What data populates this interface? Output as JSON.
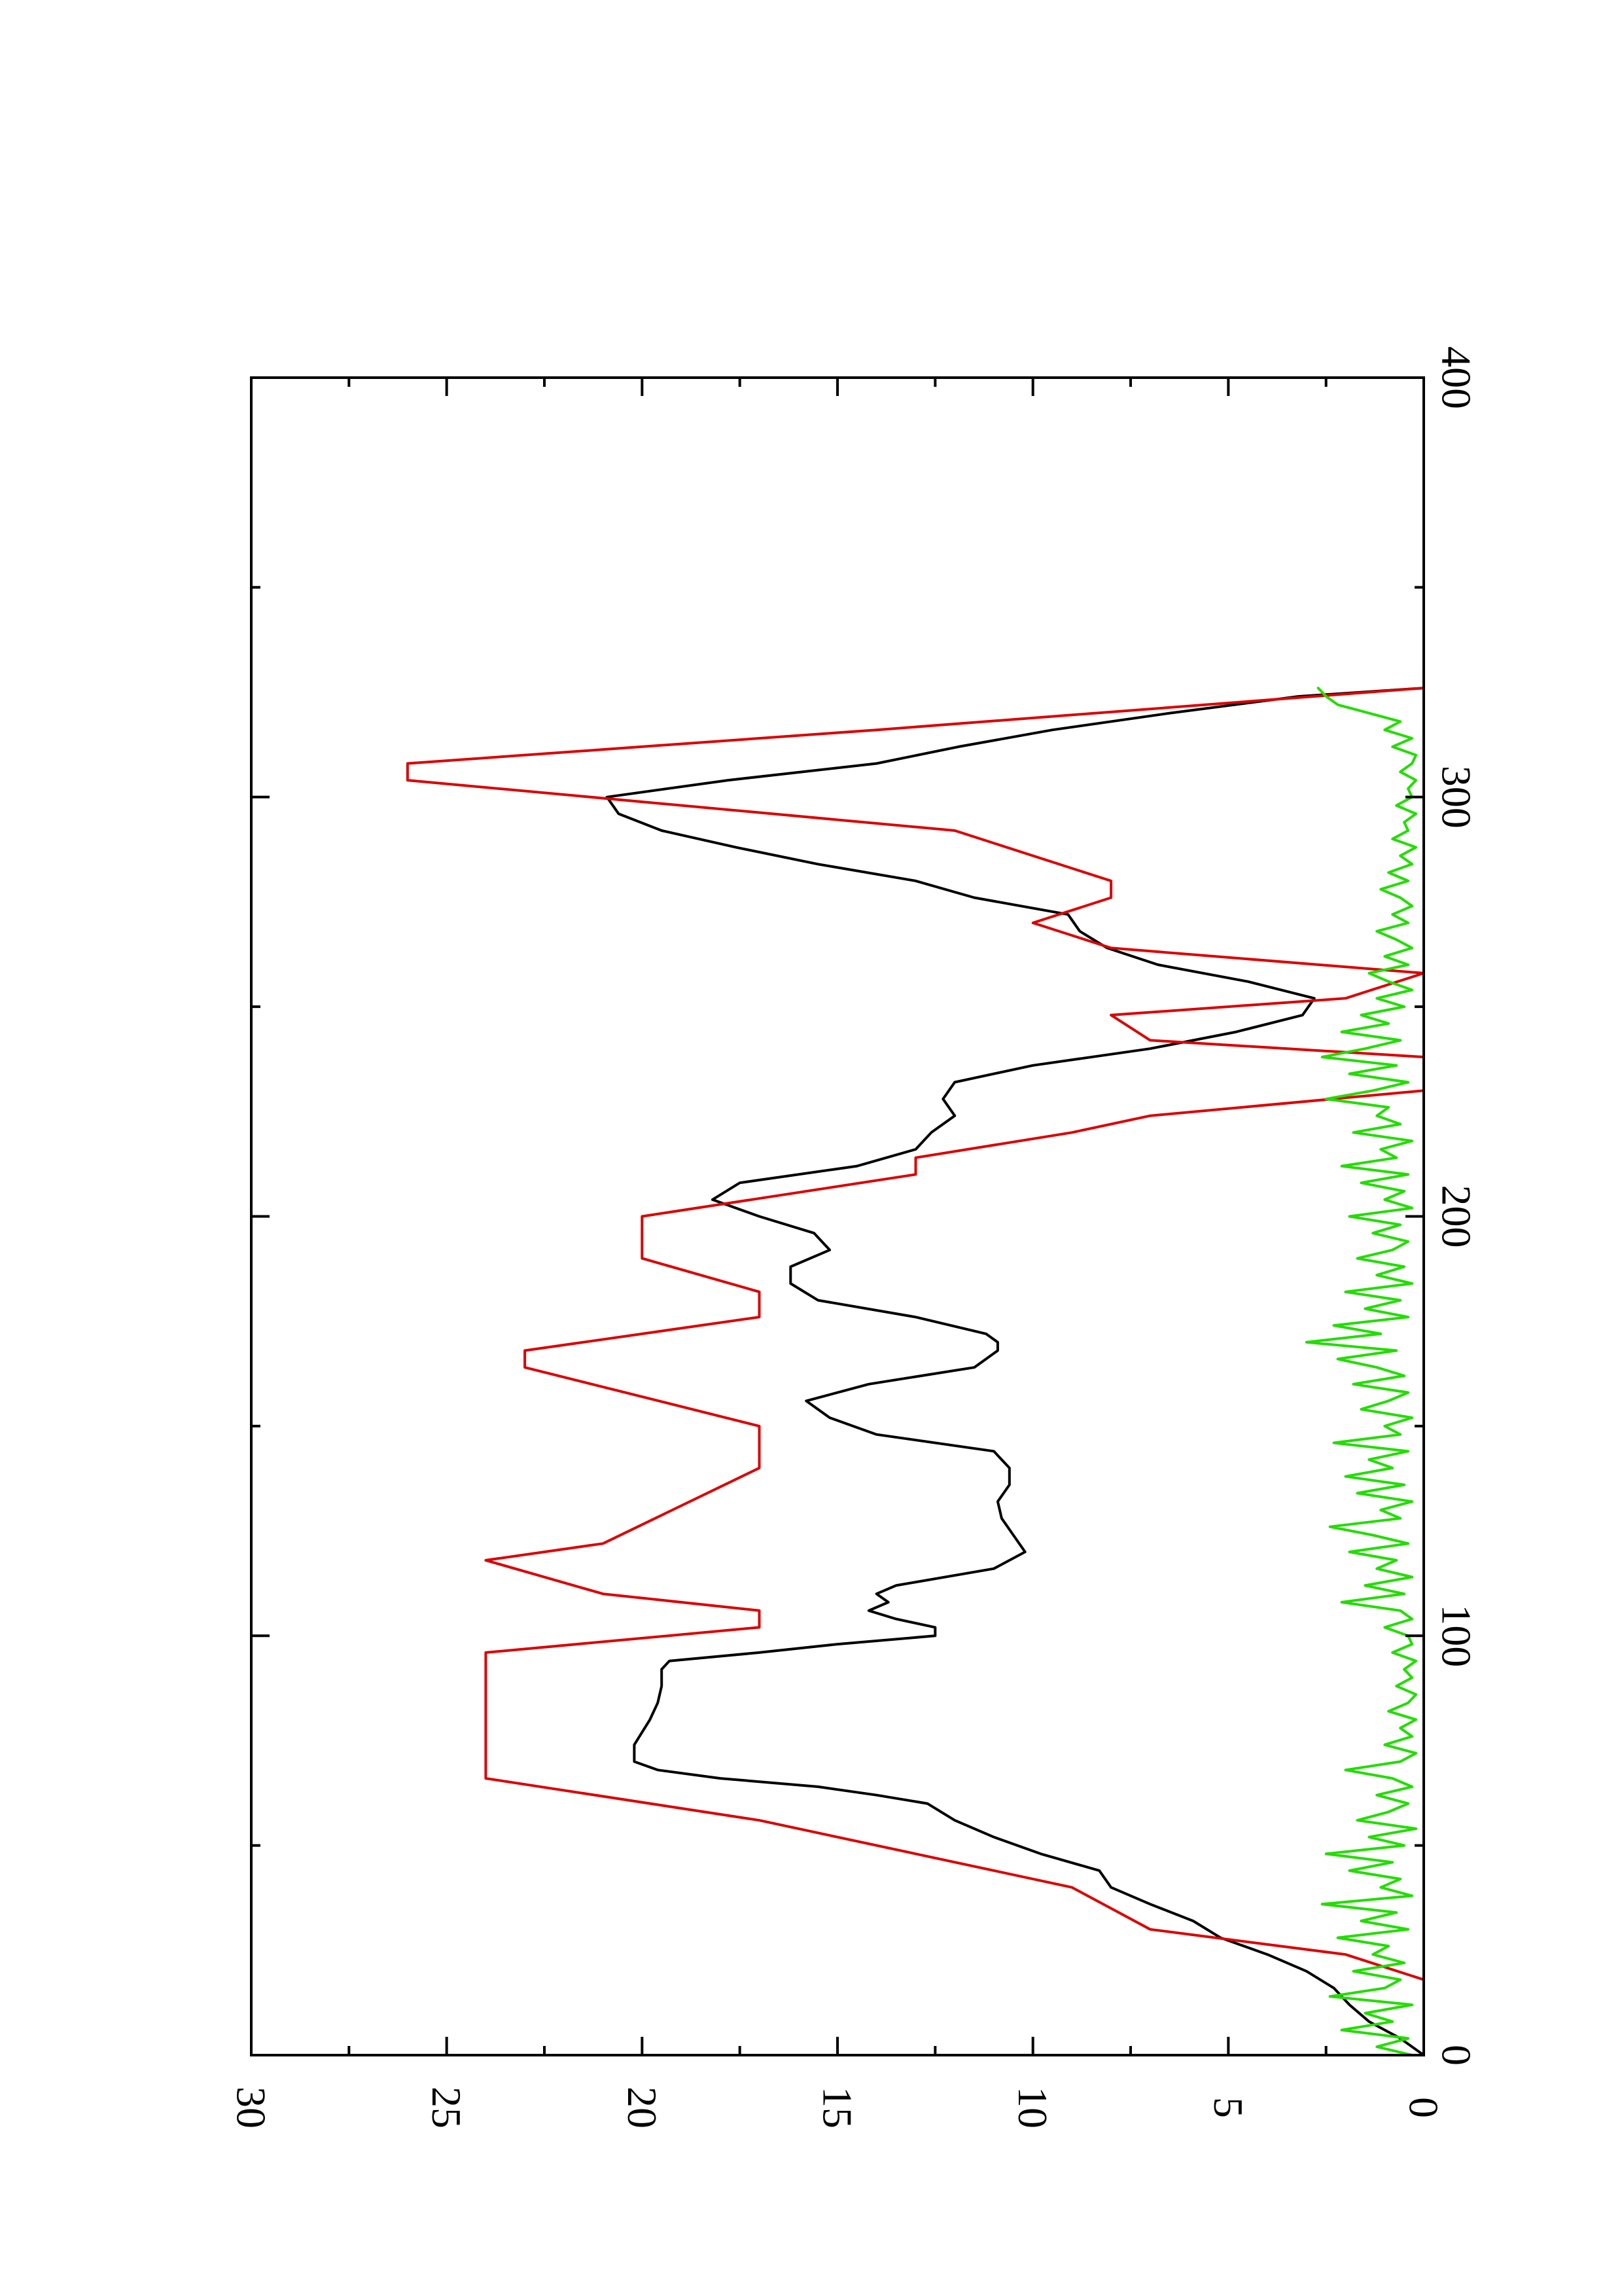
{
  "chart_data": {
    "type": "line",
    "orientation": "rotated-90-clockwise",
    "title": "",
    "xlabel": "",
    "ylabel": "",
    "xlim": [
      0,
      400
    ],
    "ylim": [
      0,
      30
    ],
    "x_ticks": [
      "0",
      "100",
      "200",
      "300",
      "400"
    ],
    "x_minor_ticks": [
      50,
      150,
      250,
      350
    ],
    "y_ticks": [
      "0",
      "5",
      "10",
      "15",
      "20",
      "25",
      "30"
    ],
    "y_minor_ticks": [
      2.5,
      7.5,
      12.5,
      17.5,
      22.5,
      27.5
    ],
    "grid": false,
    "legend": "none",
    "series": [
      {
        "color": "#000000",
        "style": "smooth-line",
        "x": [
          0,
          4,
          8,
          12,
          16,
          20,
          24,
          28,
          32,
          36,
          40,
          44,
          48,
          52,
          56,
          60,
          62,
          64,
          66,
          68,
          70,
          72,
          74,
          80,
          84,
          88,
          92,
          94,
          96,
          98,
          100,
          102,
          104,
          106,
          108,
          110,
          112,
          116,
          120,
          124,
          128,
          132,
          136,
          140,
          144,
          148,
          152,
          156,
          160,
          164,
          168,
          170,
          172,
          176,
          180,
          184,
          188,
          192,
          196,
          200,
          204,
          208,
          212,
          216,
          220,
          224,
          228,
          232,
          236,
          240,
          244,
          248,
          252,
          256,
          260,
          264,
          268,
          272,
          276,
          280,
          284,
          288,
          292,
          296,
          300,
          304,
          308,
          312,
          316,
          320,
          324,
          326
        ],
        "values": [
          0,
          0.6,
          1.4,
          1.9,
          2.3,
          3.0,
          4.0,
          5.2,
          5.9,
          7.0,
          8.0,
          8.3,
          9.8,
          11.0,
          12.0,
          12.7,
          14.0,
          15.5,
          18.0,
          19.6,
          20.2,
          20.2,
          20.2,
          19.8,
          19.6,
          19.5,
          19.5,
          19.3,
          17.0,
          15.0,
          12.5,
          12.5,
          13.5,
          14.2,
          13.7,
          14.0,
          13.5,
          11.0,
          10.2,
          10.5,
          10.8,
          10.9,
          10.6,
          10.6,
          11.0,
          14.0,
          15.2,
          15.8,
          14.2,
          11.5,
          10.9,
          10.9,
          11.2,
          13.0,
          15.5,
          16.2,
          16.2,
          15.2,
          15.6,
          17.0,
          18.2,
          17.5,
          14.5,
          13.0,
          12.6,
          12.0,
          12.3,
          12.0,
          10.0,
          7.0,
          4.8,
          3.1,
          2.8,
          4.5,
          6.8,
          8.1,
          8.8,
          9.1,
          11.5,
          13.0,
          15.5,
          17.6,
          19.5,
          20.6,
          20.9,
          17.8,
          14.0,
          11.9,
          9.5,
          6.5,
          3.2,
          0
        ]
      },
      {
        "color": "#dd0000",
        "style": "polyline",
        "x": [
          0,
          18,
          24,
          30,
          40,
          48,
          56,
          66,
          84,
          96,
          102,
          106,
          110,
          118,
          122,
          140,
          150,
          164,
          168,
          176,
          182,
          190,
          200,
          210,
          214,
          220,
          224,
          230,
          238,
          242,
          248,
          252,
          258,
          264,
          270,
          276,
          280,
          292,
          304,
          308,
          316,
          326
        ],
        "values": [
          0,
          0,
          2,
          7,
          9,
          13,
          17,
          24,
          24,
          24,
          17,
          17,
          21,
          24,
          21,
          17,
          17,
          23,
          23,
          17,
          17,
          20,
          20,
          13,
          13,
          9,
          7,
          0,
          0,
          7,
          8,
          2,
          0,
          8,
          10,
          8,
          8,
          12,
          26,
          26,
          14,
          0
        ]
      },
      {
        "color": "#22dd00",
        "style": "noisy-line",
        "x": [
          0,
          2,
          4,
          6,
          8,
          10,
          12,
          14,
          16,
          18,
          20,
          22,
          24,
          26,
          28,
          30,
          32,
          34,
          36,
          38,
          40,
          42,
          44,
          46,
          48,
          50,
          52,
          54,
          56,
          58,
          60,
          62,
          64,
          66,
          68,
          70,
          72,
          74,
          76,
          78,
          80,
          82,
          84,
          86,
          88,
          90,
          92,
          94,
          96,
          98,
          100,
          102,
          104,
          106,
          108,
          110,
          112,
          114,
          116,
          118,
          120,
          122,
          124,
          126,
          128,
          130,
          132,
          134,
          136,
          138,
          140,
          142,
          144,
          146,
          148,
          150,
          152,
          154,
          156,
          158,
          160,
          162,
          164,
          166,
          168,
          170,
          172,
          174,
          176,
          178,
          180,
          182,
          184,
          186,
          188,
          190,
          192,
          194,
          196,
          198,
          200,
          202,
          204,
          206,
          208,
          210,
          212,
          214,
          216,
          218,
          220,
          222,
          224,
          226,
          228,
          230,
          232,
          234,
          236,
          238,
          240,
          242,
          244,
          246,
          248,
          250,
          252,
          254,
          256,
          258,
          260,
          262,
          264,
          266,
          268,
          270,
          272,
          274,
          276,
          278,
          280,
          282,
          284,
          286,
          288,
          290,
          292,
          294,
          296,
          298,
          300,
          302,
          304,
          306,
          308,
          310,
          312,
          314,
          316,
          318,
          320,
          322,
          324,
          326
        ],
        "values": [
          0.3,
          1.2,
          0.4,
          2.1,
          0.8,
          1.5,
          0.3,
          2.4,
          1.0,
          0.6,
          1.8,
          0.5,
          1.3,
          0.9,
          2.2,
          0.4,
          1.6,
          0.7,
          2.6,
          0.3,
          1.1,
          0.6,
          1.9,
          0.8,
          2.5,
          0.5,
          1.4,
          0.2,
          1.7,
          0.9,
          0.4,
          1.2,
          0.3,
          0.8,
          2.0,
          0.6,
          0.2,
          1.0,
          0.3,
          0.6,
          0.2,
          0.9,
          0.4,
          0.2,
          0.7,
          0.3,
          0.5,
          0.2,
          0.8,
          0.3,
          0.4,
          1.0,
          0.3,
          0.6,
          2.1,
          0.5,
          1.5,
          0.3,
          1.2,
          0.7,
          1.9,
          0.4,
          1.3,
          2.4,
          0.6,
          1.1,
          0.3,
          1.7,
          0.5,
          2.0,
          0.8,
          1.4,
          0.4,
          2.3,
          0.6,
          1.0,
          0.3,
          1.6,
          0.9,
          0.4,
          1.8,
          0.5,
          1.2,
          2.2,
          0.7,
          3.0,
          1.1,
          2.3,
          0.4,
          1.5,
          0.6,
          2.0,
          0.3,
          1.2,
          0.5,
          1.7,
          0.8,
          0.4,
          1.3,
          0.6,
          1.9,
          0.3,
          1.0,
          0.5,
          1.6,
          0.4,
          2.1,
          0.7,
          1.1,
          0.3,
          1.8,
          0.6,
          1.2,
          0.9,
          2.5,
          1.3,
          0.4,
          1.9,
          0.7,
          2.6,
          1.5,
          0.6,
          2.1,
          0.9,
          1.6,
          0.5,
          1.2,
          0.3,
          0.9,
          1.4,
          0.4,
          1.0,
          0.3,
          0.7,
          1.2,
          0.4,
          0.8,
          0.3,
          0.6,
          1.1,
          0.4,
          0.9,
          0.3,
          0.6,
          0.2,
          0.8,
          0.4,
          0.5,
          0.2,
          0.7,
          0.3,
          0.4,
          0.2,
          0.6,
          0.3,
          0.2,
          0.8,
          0.3,
          1.0,
          0.6,
          1.4,
          2.2,
          2.5,
          2.7
        ]
      }
    ]
  }
}
